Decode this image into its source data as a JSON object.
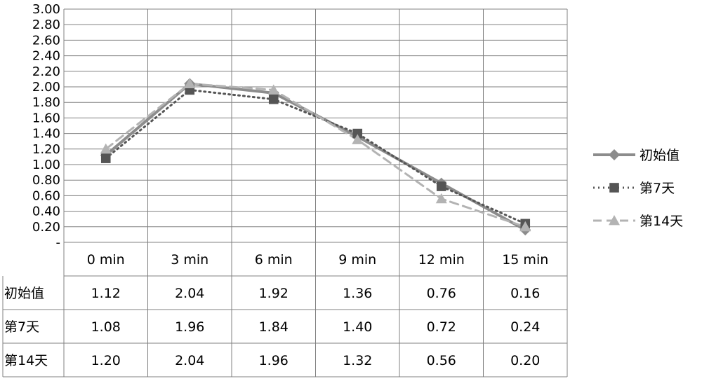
{
  "chart_data": {
    "type": "line",
    "categories": [
      "0 min",
      "3 min",
      "6 min",
      "9 min",
      "12 min",
      "15 min"
    ],
    "ylim": [
      0,
      3.0
    ],
    "yticks": [
      "-",
      "0.20",
      "0.40",
      "0.60",
      "0.80",
      "1.00",
      "1.20",
      "1.40",
      "1.60",
      "1.80",
      "2.00",
      "2.20",
      "2.40",
      "2.60",
      "2.80",
      "3.00"
    ],
    "grid": true,
    "legend_position": "right",
    "data_table": true,
    "series": [
      {
        "name": "初始值",
        "values": [
          1.12,
          2.04,
          1.92,
          1.36,
          0.76,
          0.16
        ],
        "value_labels": [
          "1.12",
          "2.04",
          "1.92",
          "1.36",
          "0.76",
          "0.16"
        ],
        "color": "#8c8c8c",
        "line_style": "solid",
        "marker": "diamond"
      },
      {
        "name": "第7天",
        "values": [
          1.08,
          1.96,
          1.84,
          1.4,
          0.72,
          0.24
        ],
        "value_labels": [
          "1.08",
          "1.96",
          "1.84",
          "1.40",
          "0.72",
          "0.24"
        ],
        "color": "#555555",
        "line_style": "dotted",
        "marker": "square"
      },
      {
        "name": "第14天",
        "values": [
          1.2,
          2.04,
          1.96,
          1.32,
          0.56,
          0.2
        ],
        "value_labels": [
          "1.20",
          "2.04",
          "1.96",
          "1.32",
          "0.56",
          "0.20"
        ],
        "color": "#b3b3b3",
        "line_style": "dashed",
        "marker": "triangle"
      }
    ]
  }
}
